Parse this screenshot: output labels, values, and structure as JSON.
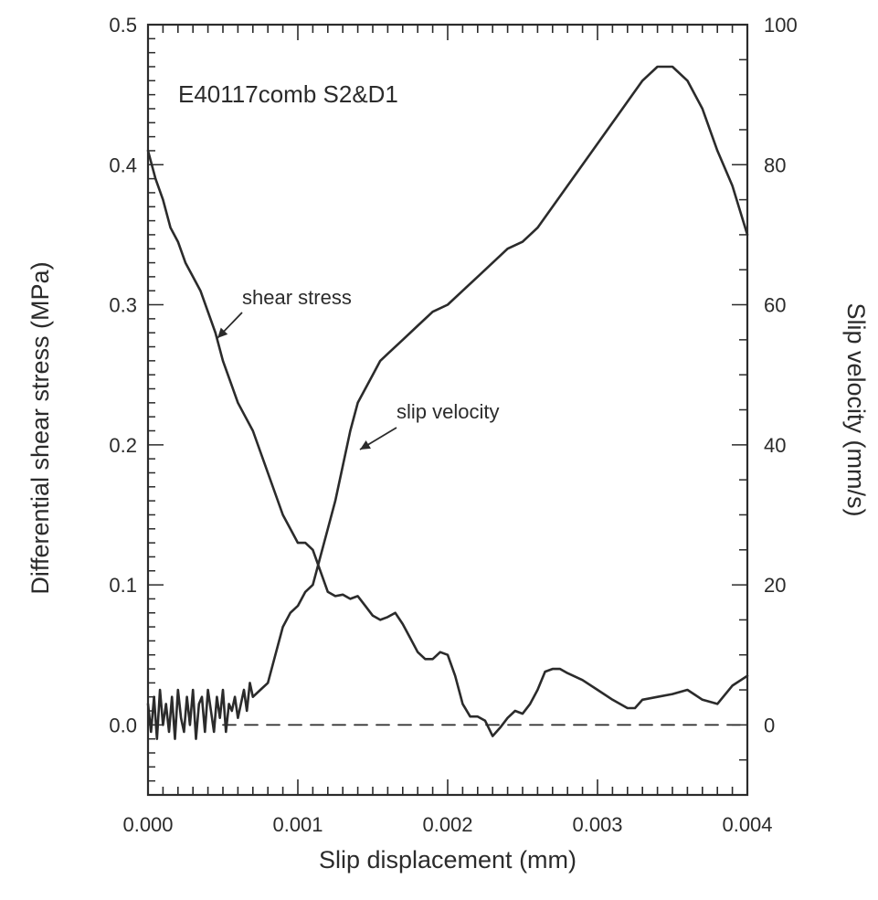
{
  "chart_data": {
    "type": "line",
    "title": "E40117comb  S2&D1",
    "xlabel": "Slip displacement  (mm)",
    "ylabel_left": "Differential shear stress  (MPa)",
    "ylabel_right": "Slip velocity  (mm/s)",
    "xlim": [
      0,
      0.004
    ],
    "ylim_left": [
      -0.05,
      0.5
    ],
    "ylim_right": [
      -10,
      100
    ],
    "grid": false,
    "legend": "none",
    "x_ticks": [
      "0.000",
      "0.001",
      "0.002",
      "0.003",
      "0.004"
    ],
    "y_left_ticks": [
      "0.0",
      "0.1",
      "0.2",
      "0.3",
      "0.4",
      "0.5"
    ],
    "y_right_ticks": [
      "0",
      "20",
      "40",
      "60",
      "80",
      "100"
    ],
    "annotations": [
      {
        "text": "shear stress",
        "series": "shear stress",
        "x": 0.00045,
        "y": 0.275
      },
      {
        "text": "slip velocity",
        "series": "slip velocity",
        "x": 0.00145,
        "y": 0.195
      }
    ],
    "series": [
      {
        "name": "shear stress",
        "axis": "left",
        "style": "solid",
        "x": [
          0.0,
          5e-05,
          0.0001,
          0.00015,
          0.0002,
          0.00025,
          0.0003,
          0.00035,
          0.0004,
          0.00045,
          0.0005,
          0.00055,
          0.0006,
          0.00065,
          0.0007,
          0.00075,
          0.0008,
          0.00085,
          0.0009,
          0.00095,
          0.001,
          0.00105,
          0.0011,
          0.00115,
          0.0012,
          0.00125,
          0.0013,
          0.00135,
          0.0014,
          0.00145,
          0.0015,
          0.00155,
          0.0016,
          0.00165,
          0.0017,
          0.00175,
          0.0018,
          0.00185,
          0.0019,
          0.00195,
          0.002,
          0.00205,
          0.0021,
          0.00215,
          0.0022,
          0.00225,
          0.0023,
          0.00235,
          0.0024,
          0.00245,
          0.0025,
          0.00255,
          0.0026,
          0.00265,
          0.0027,
          0.00275,
          0.0028,
          0.0029,
          0.003,
          0.0031,
          0.0032,
          0.00325,
          0.0033,
          0.0034,
          0.0035,
          0.0036,
          0.0037,
          0.0038,
          0.0039,
          0.004
        ],
        "y": [
          0.41,
          0.39,
          0.375,
          0.355,
          0.345,
          0.33,
          0.32,
          0.31,
          0.295,
          0.28,
          0.26,
          0.245,
          0.23,
          0.22,
          0.21,
          0.195,
          0.18,
          0.165,
          0.15,
          0.14,
          0.13,
          0.13,
          0.125,
          0.11,
          0.095,
          0.092,
          0.093,
          0.09,
          0.092,
          0.085,
          0.078,
          0.075,
          0.077,
          0.08,
          0.072,
          0.062,
          0.052,
          0.047,
          0.047,
          0.052,
          0.05,
          0.035,
          0.015,
          0.006,
          0.006,
          0.003,
          -0.008,
          -0.002,
          0.005,
          0.01,
          0.008,
          0.015,
          0.025,
          0.038,
          0.04,
          0.04,
          0.037,
          0.032,
          0.025,
          0.018,
          0.012,
          0.012,
          0.018,
          0.02,
          0.022,
          0.025,
          0.018,
          0.015,
          0.028,
          0.035
        ]
      },
      {
        "name": "slip velocity",
        "axis": "right",
        "style": "solid",
        "x": [
          0.0,
          2e-05,
          4e-05,
          6e-05,
          8e-05,
          0.0001,
          0.00012,
          0.00014,
          0.00016,
          0.00018,
          0.0002,
          0.00022,
          0.00024,
          0.00026,
          0.00028,
          0.0003,
          0.00032,
          0.00034,
          0.00036,
          0.00038,
          0.0004,
          0.00042,
          0.00044,
          0.00046,
          0.00048,
          0.0005,
          0.00052,
          0.00054,
          0.00056,
          0.00058,
          0.0006,
          0.00062,
          0.00064,
          0.00066,
          0.00068,
          0.0007,
          0.00075,
          0.0008,
          0.00085,
          0.0009,
          0.00095,
          0.001,
          0.00105,
          0.0011,
          0.00115,
          0.0012,
          0.00125,
          0.0013,
          0.00135,
          0.0014,
          0.00145,
          0.0015,
          0.00155,
          0.0016,
          0.0017,
          0.0018,
          0.0019,
          0.002,
          0.0021,
          0.0022,
          0.0023,
          0.0024,
          0.0025,
          0.0026,
          0.0027,
          0.0028,
          0.0029,
          0.003,
          0.0031,
          0.0032,
          0.0033,
          0.0034,
          0.0035,
          0.0036,
          0.0037,
          0.0038,
          0.0039,
          0.004
        ],
        "y": [
          3,
          -1,
          4,
          -2,
          5,
          0,
          3,
          -1,
          4,
          -2,
          5,
          1,
          -1,
          4,
          0,
          5,
          -2,
          3,
          4,
          -1,
          5,
          2,
          -1,
          4,
          1,
          5,
          -1,
          3,
          2,
          4,
          1,
          3,
          5,
          2,
          6,
          4,
          5,
          6,
          10,
          14,
          16,
          17,
          19,
          20,
          24,
          28,
          32,
          37,
          42,
          46,
          48,
          50,
          52,
          53,
          55,
          57,
          59,
          60,
          62,
          64,
          66,
          68,
          69,
          71,
          74,
          77,
          80,
          83,
          86,
          89,
          92,
          94,
          94,
          92,
          88,
          82,
          77,
          70
        ]
      },
      {
        "name": "zero",
        "axis": "left",
        "style": "dashed",
        "x": [
          0.0005,
          0.004
        ],
        "y": [
          0.0,
          0.0
        ]
      }
    ]
  }
}
